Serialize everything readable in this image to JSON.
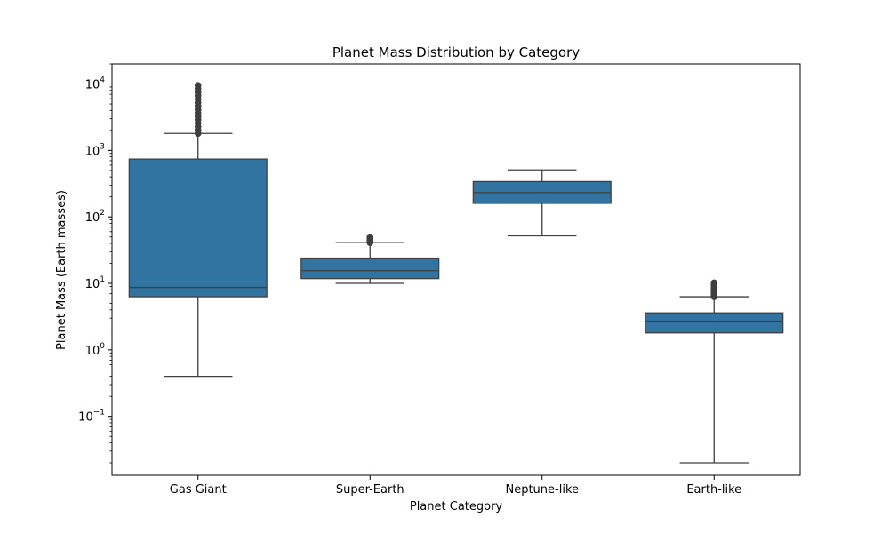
{
  "chart_data": {
    "type": "box",
    "title": "Planet Mass Distribution by Category",
    "xlabel": "Planet Category",
    "ylabel": "Planet Mass (Earth masses)",
    "yscale": "log",
    "ylim": [
      0.013,
      20000
    ],
    "grid": false,
    "colors": {
      "box_fill": "#3274a1",
      "line": "#3f3f3f"
    },
    "y_tick_labels": [
      "10^-1",
      "10^0",
      "10^1",
      "10^2",
      "10^3",
      "10^4"
    ],
    "categories": [
      "Gas Giant",
      "Super-Earth",
      "Neptune-like",
      "Earth-like"
    ],
    "boxes": [
      {
        "category": "Gas Giant",
        "whisker_low": 0.4,
        "q1": 6.3,
        "median": 8.7,
        "q3": 740,
        "whisker_high": 1800,
        "outliers_range": [
          1800,
          9500
        ]
      },
      {
        "category": "Super-Earth",
        "whisker_low": 10,
        "q1": 11.8,
        "median": 15.5,
        "q3": 24,
        "whisker_high": 41,
        "outliers_range": [
          41,
          50
        ]
      },
      {
        "category": "Neptune-like",
        "whisker_low": 52,
        "q1": 160,
        "median": 232,
        "q3": 340,
        "whisker_high": 510,
        "outliers_range": null
      },
      {
        "category": "Earth-like",
        "whisker_low": 0.02,
        "q1": 1.8,
        "median": 2.7,
        "q3": 3.6,
        "whisker_high": 6.3,
        "outliers_range": [
          6.3,
          10.2
        ]
      }
    ]
  }
}
